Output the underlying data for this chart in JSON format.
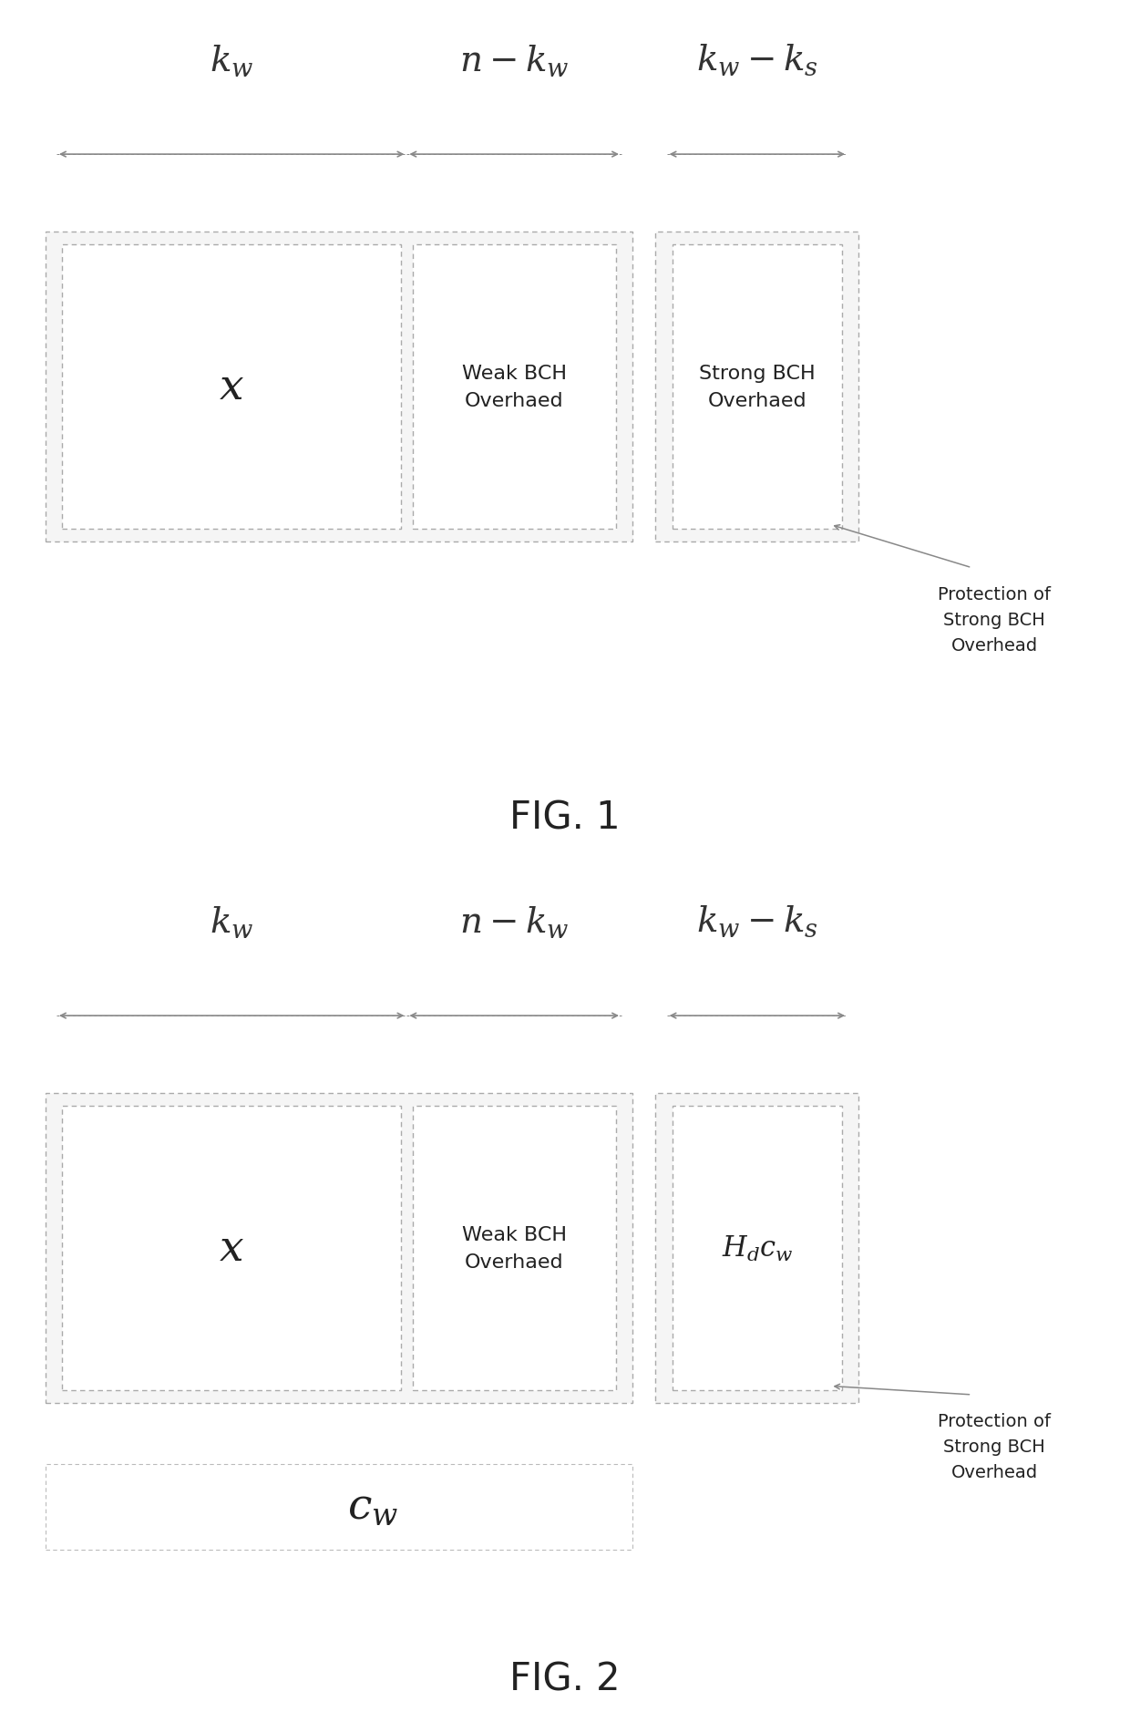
{
  "fig1": {
    "title": "FIG. 1",
    "box1_label": "$x$",
    "box2_label": "Weak BCH\nOverhaed",
    "box3_label": "Strong BCH\nOverhaed",
    "arrow1_label": "$k_{w}$",
    "arrow2_label": "$n-k_{w}$",
    "arrow3_label": "$k_{w}-k_{s}$",
    "annotation": "Protection of\nStrong BCH\nOverhead"
  },
  "fig2": {
    "title": "FIG. 2",
    "box1_label": "$x$",
    "box2_label": "Weak BCH\nOverhaed",
    "box3_label": "$H_{d}c_{w}$",
    "cw_label": "$c_{w}$",
    "arrow1_label": "$k_{w}$",
    "arrow2_label": "$n-k_{w}$",
    "arrow3_label": "$k_{w}-k_{s}$",
    "annotation": "Protection of\nStrong BCH\nOverhead"
  },
  "background_color": "#ffffff",
  "text_color": "#222222",
  "arrow_color": "#888888",
  "label_color": "#333333"
}
